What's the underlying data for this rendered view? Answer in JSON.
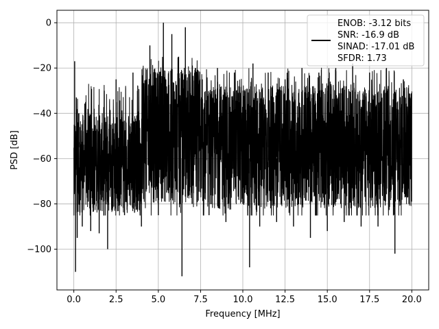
{
  "chart_data": {
    "type": "line",
    "title": "",
    "xlabel": "Frequency [MHz]",
    "ylabel": "PSD [dB]",
    "xlim": [
      -1.0,
      21.0
    ],
    "ylim": [
      -118,
      5.5
    ],
    "xticks": [
      0.0,
      2.5,
      5.0,
      7.5,
      10.0,
      12.5,
      15.0,
      17.5,
      20.0
    ],
    "xtick_labels": [
      "0.0",
      "2.5",
      "5.0",
      "7.5",
      "10.0",
      "12.5",
      "15.0",
      "17.5",
      "20.0"
    ],
    "yticks": [
      0,
      -20,
      -40,
      -60,
      -80,
      -100
    ],
    "ytick_labels": [
      "0",
      "−20",
      "−40",
      "−60",
      "−80",
      "−100"
    ],
    "grid": true,
    "legend_position": "top-right",
    "series": [
      {
        "name": "",
        "color": "#000000",
        "x": [
          0.0,
          0.05,
          0.1,
          0.15,
          0.2,
          0.3,
          0.5,
          0.7,
          1.0,
          1.2,
          1.5,
          1.8,
          2.0,
          2.5,
          3.0,
          3.5,
          4.0,
          4.5,
          5.0,
          5.3,
          5.5,
          5.8,
          6.0,
          6.2,
          6.4,
          6.6,
          7.0,
          7.2,
          7.4,
          7.6,
          8.0,
          8.5,
          9.0,
          9.5,
          10.0,
          10.4,
          10.6,
          11.0,
          11.5,
          12.0,
          12.5,
          13.0,
          13.5,
          14.0,
          14.5,
          15.0,
          15.5,
          16.0,
          16.5,
          17.0,
          17.5,
          18.0,
          18.5,
          19.0,
          19.5,
          20.0
        ],
        "y": [
          -60,
          -17,
          -110,
          -33,
          -95,
          -40,
          -90,
          -35,
          -92,
          -38,
          -93,
          -30,
          -100,
          -25,
          -85,
          -22,
          -90,
          -10,
          -85,
          0,
          -75,
          -5,
          -70,
          -15,
          -112,
          -2,
          -80,
          -20,
          -70,
          -25,
          -85,
          -20,
          -88,
          -22,
          -80,
          -108,
          -18,
          -90,
          -22,
          -88,
          -25,
          -90,
          -20,
          -95,
          -22,
          -92,
          -20,
          -88,
          -18,
          -90,
          -22,
          -90,
          -20,
          -102,
          -25,
          -60
        ]
      }
    ],
    "legend_lines": [
      "ENOB: -3.12 bits",
      "SNR: -16.9 dB",
      "SINAD: -17.01 dB",
      "SFDR: 1.73"
    ]
  }
}
